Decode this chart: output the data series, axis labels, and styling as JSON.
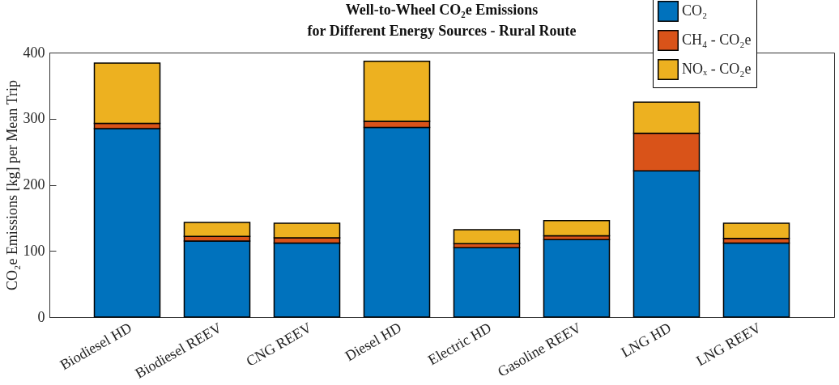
{
  "chart_data": {
    "type": "bar",
    "title": "Well-to-Wheel CO₂e Emissions",
    "subtitle": "for Different Energy Sources - Rural Route",
    "ylabel": "CO₂e Emissions [kg] per Mean Trip",
    "categories": [
      "Biodiesel HD",
      "Biodiesel REEV",
      "CNG REEV",
      "Diesel HD",
      "Electric HD",
      "Gasoline REEV",
      "LNG HD",
      "LNG REEV"
    ],
    "stacked": true,
    "series": [
      {
        "name": "CO₂",
        "color": "#0072bd",
        "values": [
          285,
          115,
          112,
          287,
          105,
          117,
          221,
          112
        ]
      },
      {
        "name": "CH₄ - CO₂e",
        "color": "#d95319",
        "values": [
          8,
          7,
          8,
          9,
          6,
          6,
          57,
          7
        ]
      },
      {
        "name": "NOₓ - CO₂e",
        "color": "#edb120",
        "values": [
          91,
          21,
          22,
          91,
          21,
          23,
          47,
          23
        ]
      }
    ],
    "ylim": [
      0,
      400
    ],
    "yticks": [
      0,
      100,
      200,
      300,
      400
    ],
    "grid": false,
    "legend": "top right"
  }
}
